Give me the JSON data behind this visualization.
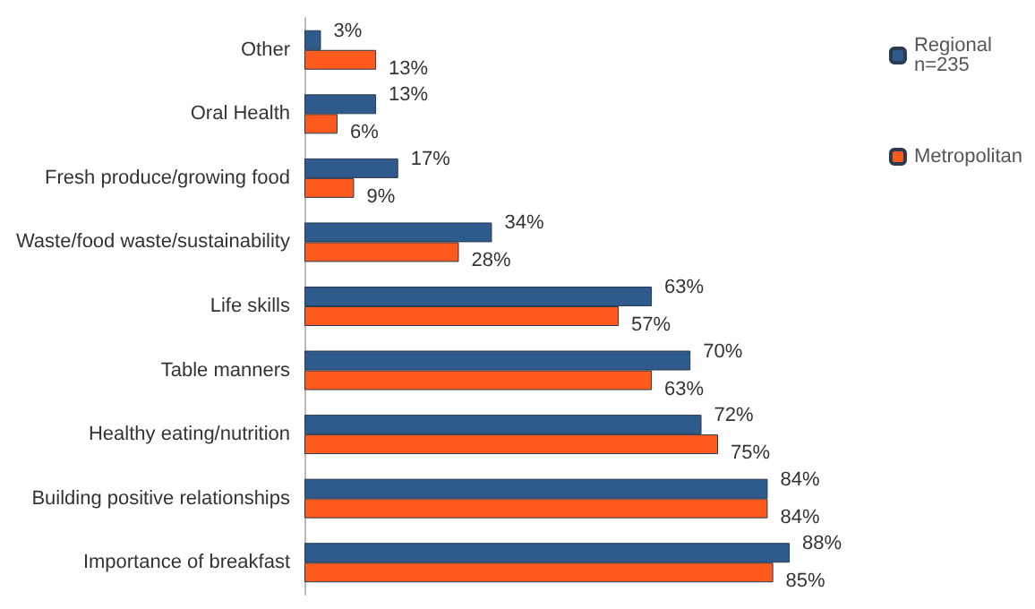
{
  "chart_data": {
    "type": "bar",
    "orientation": "horizontal",
    "categories": [
      "Other",
      "Oral Health",
      "Fresh produce/growing food",
      "Waste/food waste/sustainability",
      "Life skills",
      "Table manners",
      "Healthy eating/nutrition",
      "Building positive relationships",
      "Importance of breakfast"
    ],
    "series": [
      {
        "name": "Regional n=235",
        "color": "#2e5b8c",
        "values": [
          3,
          13,
          17,
          34,
          63,
          70,
          72,
          84,
          88
        ],
        "value_labels": [
          "3%",
          "13%",
          "17%",
          "34%",
          "63%",
          "70%",
          "72%",
          "84%",
          "88%"
        ]
      },
      {
        "name": "Metropolitan",
        "color": "#ff5a1e",
        "values": [
          13,
          6,
          9,
          28,
          57,
          63,
          75,
          84,
          85
        ],
        "value_labels": [
          "13%",
          "6%",
          "9%",
          "28%",
          "57%",
          "63%",
          "75%",
          "84%",
          "85%"
        ]
      }
    ],
    "legend": "top right"
  }
}
